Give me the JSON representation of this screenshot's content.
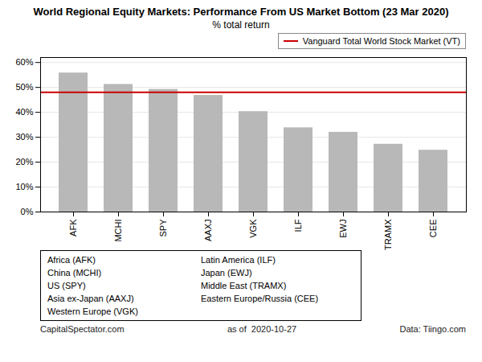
{
  "chart_data": {
    "type": "bar",
    "title": "World Regional Equity Markets: Performance From US Market Bottom (23 Mar 2020)",
    "subtitle": "% total return",
    "categories": [
      "AFK",
      "MCHI",
      "SPY",
      "AAXJ",
      "VGK",
      "ILF",
      "EWJ",
      "TRAMX",
      "CEE"
    ],
    "values": [
      0.558,
      0.512,
      0.492,
      0.468,
      0.403,
      0.338,
      0.32,
      0.272,
      0.248
    ],
    "color": "#b8b8b8",
    "ylim": [
      0,
      0.62
    ],
    "yticks": [
      {
        "value": 0.0,
        "label": "0%"
      },
      {
        "value": 0.1,
        "label": "10%"
      },
      {
        "value": 0.2,
        "label": "20%"
      },
      {
        "value": 0.3,
        "label": "30%"
      },
      {
        "value": 0.4,
        "label": "40%"
      },
      {
        "value": 0.5,
        "label": "50%"
      },
      {
        "value": 0.6,
        "label": "60%"
      }
    ],
    "grid": true,
    "legend": "upper right",
    "reference_line": {
      "name": "Vanguard Total World Stock Market (VT)",
      "value": 0.48,
      "color": "#cc0000"
    },
    "annotations": [
      [
        "Africa (AFK)",
        "China (MCHI)",
        "US (SPY)",
        "Asia ex-Japan (AAXJ)",
        "Western Europe (VGK)"
      ],
      [
        "Latin America (ILF)",
        "Japan (EWJ)",
        "Middle East (TRAMX)",
        "Eastern Europe/Russia (CEE)"
      ]
    ],
    "footer": [
      "CapitalSpectator.com",
      "as of  2020-10-27",
      "Data: Tiingo.com"
    ]
  }
}
